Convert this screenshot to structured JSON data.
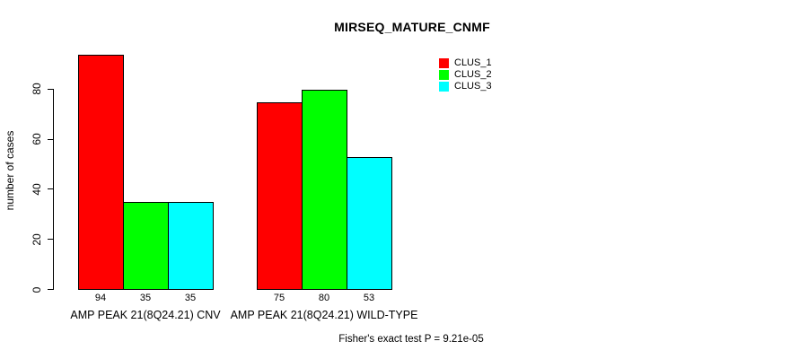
{
  "title": "MIRSEQ_MATURE_CNMF",
  "footer": "Fisher's exact test P = 9.21e-05",
  "chart_data": {
    "type": "bar",
    "title": "MIRSEQ_MATURE_CNMF",
    "ylabel": "number of cases",
    "xlabel": "",
    "categories": [
      "AMP PEAK 21(8Q24.21) CNV",
      "AMP PEAK 21(8Q24.21) WILD-TYPE"
    ],
    "series": [
      {
        "name": "CLUS_1",
        "color": "#ff0000",
        "values": [
          94,
          75
        ]
      },
      {
        "name": "CLUS_2",
        "color": "#00ff00",
        "values": [
          35,
          80
        ]
      },
      {
        "name": "CLUS_3",
        "color": "#00ffff",
        "values": [
          35,
          53
        ]
      }
    ],
    "bar_value_labels": [
      [
        94,
        35,
        35
      ],
      [
        75,
        80,
        53
      ]
    ],
    "yticks": [
      0,
      20,
      40,
      60,
      80
    ],
    "ylim": [
      0,
      94
    ],
    "grid": false,
    "legend_position": "top-right",
    "annotation": "Fisher's exact test P = 9.21e-05"
  }
}
